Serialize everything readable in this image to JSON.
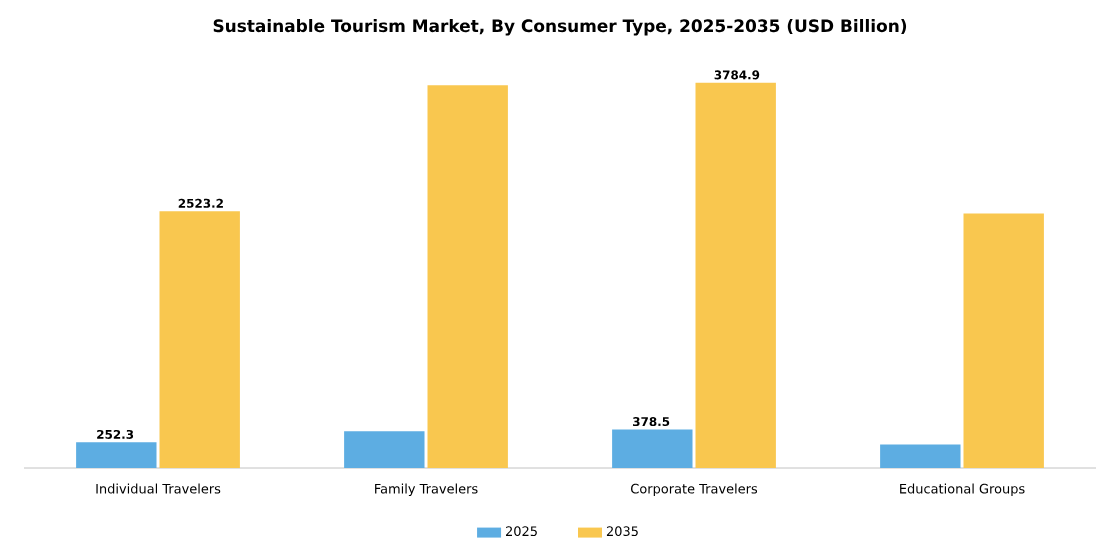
{
  "chart_data": {
    "type": "bar",
    "title": "Sustainable Tourism Market, By Consumer Type, 2025-2035 (USD Billion)",
    "categories": [
      "Individual Travelers",
      "Family Travelers",
      "Corporate Travelers",
      "Educational Groups"
    ],
    "series": [
      {
        "name": "2025",
        "color": "#5dade2",
        "values": [
          252.3,
          360,
          378.5,
          230
        ],
        "value_labels": [
          "252.3",
          null,
          "378.5",
          null
        ]
      },
      {
        "name": "2035",
        "color": "#f9c74f",
        "values": [
          2523.2,
          3760,
          3784.9,
          2500
        ],
        "value_labels": [
          "2523.2",
          null,
          "3784.9",
          null
        ]
      }
    ],
    "legend": "bottom",
    "tick_labels": "x"
  }
}
